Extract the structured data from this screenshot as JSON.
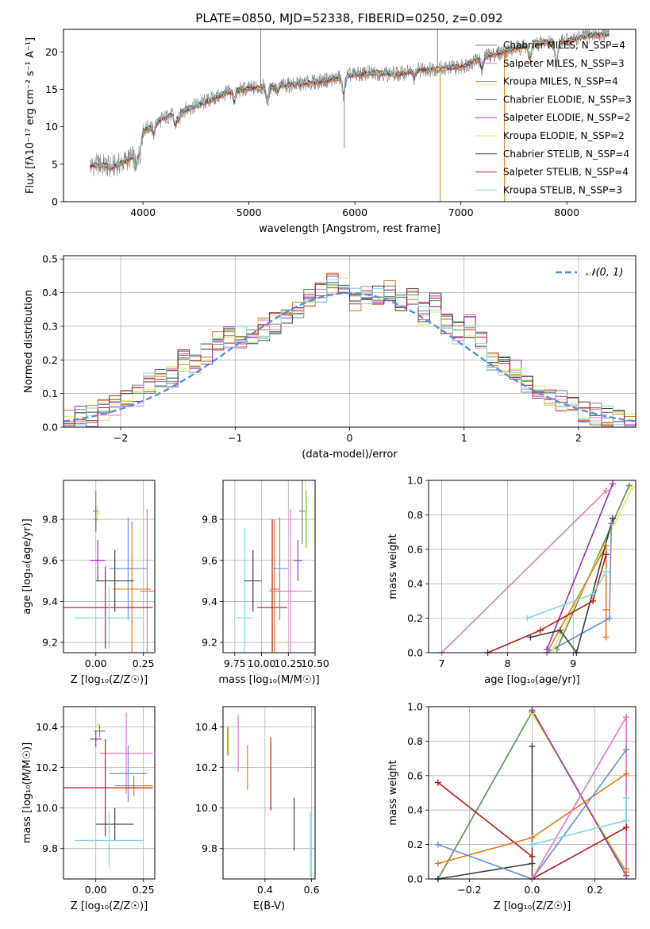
{
  "figure": {
    "title": "PLATE=0850, MJD=52338, FIBERID=0250, z=0.092"
  },
  "series_colors": {
    "Chabrier MILES": "#808080",
    "Salpeter MILES": "#e377c2",
    "Kroupa MILES": "#e07b1a",
    "Chabrier ELODIE": "#5a8f5a",
    "Salpeter ELODIE": "#9b30b0",
    "Kroupa ELODIE": "#e8e85a",
    "Chabrier STELIB": "#404040",
    "Salpeter STELIB": "#b01c1c",
    "Kroupa STELIB": "#7fd8d8",
    "extra_blue": "#6a8fd8",
    "extra_green": "#9ed65a",
    "gaussian": "#5b8fd6"
  },
  "chart_data": [
    {
      "type": "line",
      "id": "spectrum",
      "title": "PLATE=0850, MJD=52338, FIBERID=0250, z=0.092",
      "xlabel": "wavelength [Angstrom, rest frame]",
      "ylabel": "Flux [fλ10⁻¹⁷ erg cm⁻² s⁻¹ A⁻¹]",
      "xlim": [
        3250,
        8650
      ],
      "ylim": [
        0,
        23
      ],
      "xticks": [
        "4000",
        "5000",
        "6000",
        "7000",
        "8000"
      ],
      "xtick_values": [
        4000,
        5000,
        6000,
        7000,
        8000
      ],
      "yticks": [
        "0",
        "5",
        "10",
        "15",
        "20"
      ],
      "ytick_values": [
        0,
        5,
        10,
        15,
        20
      ],
      "grid": false,
      "legend_position": "right",
      "legend": [
        "Chabrier MILES, N_SSP=4",
        "Salpeter MILES, N_SSP=3",
        "Kroupa MILES, N_SSP=4",
        "Chabrier ELODIE, N_SSP=3",
        "Salpeter ELODIE, N_SSP=2",
        "Kroupa ELODIE, N_SSP=2",
        "Chabrier STELIB, N_SSP=4",
        "Salpeter STELIB, N_SSP=4",
        "Kroupa STELIB, N_SSP=3"
      ],
      "continuum": {
        "x": [
          3500,
          3600,
          3700,
          3800,
          3900,
          4000,
          4200,
          4400,
          4600,
          4800,
          5000,
          5200,
          5400,
          5600,
          5800,
          6000,
          6200,
          6400,
          6600,
          6800,
          7000,
          7200,
          7400,
          7600,
          7800,
          8000,
          8200,
          8400
        ],
        "y": [
          4.8,
          5.0,
          4.6,
          5.2,
          6.0,
          9.5,
          11.2,
          12.3,
          13.4,
          14.6,
          15.1,
          15.4,
          15.6,
          15.9,
          16.4,
          17.0,
          17.2,
          17.0,
          17.6,
          17.8,
          18.0,
          19.3,
          20.0,
          20.8,
          21.3,
          21.4,
          22.2,
          22.4
        ]
      },
      "absorption_features": [
        {
          "x": 3934,
          "depth": 2.5
        },
        {
          "x": 3969,
          "depth": 2.0
        },
        {
          "x": 4102,
          "depth": 1.2
        },
        {
          "x": 4305,
          "depth": 1.5
        },
        {
          "x": 4340,
          "depth": 1.0
        },
        {
          "x": 4861,
          "depth": 1.2
        },
        {
          "x": 5175,
          "depth": 2.0
        },
        {
          "x": 5270,
          "depth": 0.8
        },
        {
          "x": 5893,
          "depth": 2.3
        },
        {
          "x": 6563,
          "depth": 1.0
        },
        {
          "x": 7200,
          "depth": 1.5
        },
        {
          "x": 7650,
          "depth": 2.0
        },
        {
          "x": 7900,
          "depth": 2.8
        }
      ],
      "spikes": [
        {
          "x": 5110,
          "y": 23.0
        },
        {
          "x": 5900,
          "y": 7.2
        },
        {
          "x": 6780,
          "y": 23.0
        },
        {
          "x": 6805,
          "y": 0.0
        },
        {
          "x": 7410,
          "y": 0.0
        }
      ]
    },
    {
      "type": "line",
      "id": "residuals",
      "xlabel": "(data-model)/error",
      "ylabel": "Normed distribution",
      "xlim": [
        -2.5,
        2.5
      ],
      "ylim": [
        0,
        0.51
      ],
      "xticks": [
        "−2",
        "−1",
        "0",
        "1",
        "2"
      ],
      "xtick_values": [
        -2,
        -1,
        0,
        1,
        2
      ],
      "yticks": [
        "0.0",
        "0.1",
        "0.2",
        "0.3",
        "0.4",
        "0.5"
      ],
      "ytick_values": [
        0,
        0.1,
        0.2,
        0.3,
        0.4,
        0.5
      ],
      "grid": true,
      "legend_position": "top-right",
      "legend": [
        "𝒩(0, 1)"
      ],
      "bin_edges_start": -2.5,
      "bin_width": 0.1,
      "histogram": [
        0.02,
        0.03,
        0.03,
        0.05,
        0.06,
        0.08,
        0.09,
        0.13,
        0.14,
        0.15,
        0.2,
        0.19,
        0.22,
        0.25,
        0.27,
        0.27,
        0.26,
        0.29,
        0.31,
        0.33,
        0.34,
        0.38,
        0.4,
        0.43,
        0.41,
        0.38,
        0.4,
        0.39,
        0.41,
        0.38,
        0.38,
        0.34,
        0.37,
        0.31,
        0.28,
        0.3,
        0.25,
        0.2,
        0.18,
        0.17,
        0.13,
        0.11,
        0.1,
        0.08,
        0.07,
        0.05,
        0.04,
        0.03,
        0.02,
        0.02
      ],
      "gaussian": {
        "mu": 0,
        "sigma": 1,
        "style": "dashed"
      }
    },
    {
      "type": "scatter",
      "id": "age_vs_Z",
      "xlabel": "Z [log₁₀(Z/Z☉)]",
      "ylabel": "age  [log₁₀(age/yr)]",
      "xlim": [
        -0.17,
        0.31
      ],
      "ylim": [
        9.15,
        9.99
      ],
      "xticks": [
        "0.00",
        "0.25"
      ],
      "xtick_values": [
        0.0,
        0.25
      ],
      "yticks": [
        "9.2",
        "9.4",
        "9.6",
        "9.8"
      ],
      "ytick_values": [
        9.2,
        9.4,
        9.6,
        9.8
      ],
      "grid": true,
      "errorbars": [
        {
          "series": "Chabrier MILES",
          "x": 0.0,
          "xerr": 0.015,
          "y": 9.84,
          "yerr": 0.1
        },
        {
          "series": "Kroupa ELODIE",
          "x": 0.01,
          "xerr": 0.01,
          "y": 9.83,
          "yerr": 0.04
        },
        {
          "series": "Salpeter MILES",
          "x": 0.27,
          "xerr": 0.04,
          "y": 9.45,
          "yerr": 0.4
        },
        {
          "series": "extra_blue",
          "x": 0.17,
          "xerr": 0.1,
          "y": 9.56,
          "yerr": 0.25
        },
        {
          "series": "Kroupa MILES",
          "x": 0.19,
          "xerr": 0.1,
          "y": 9.46,
          "yerr": 0.33
        },
        {
          "series": "Salpeter ELODIE",
          "x": 0.01,
          "xerr": 0.04,
          "y": 9.6,
          "yerr": 0.1
        },
        {
          "series": "Chabrier STELIB",
          "x": 0.1,
          "xerr": 0.1,
          "y": 9.5,
          "yerr": 0.15
        },
        {
          "series": "Salpeter STELIB",
          "x": 0.05,
          "xerr": 0.25,
          "y": 9.37,
          "yerr": 0.2
        },
        {
          "series": "Kroupa STELIB",
          "x": 0.07,
          "xerr": 0.18,
          "y": 9.32,
          "yerr": 0.15
        },
        {
          "series": "Chabrier ELODIE",
          "x": 0.0,
          "xerr": 0.01,
          "y": 9.8,
          "yerr": 0.06
        }
      ]
    },
    {
      "type": "scatter",
      "id": "age_vs_mass",
      "xlabel": "mass [log₁₀(M/M☉)]",
      "ylabel": "",
      "xlim": [
        9.64,
        10.5
      ],
      "ylim": [
        9.15,
        9.99
      ],
      "xticks": [
        "9.75",
        "10.00",
        "10.25",
        "10.50"
      ],
      "xtick_values": [
        9.75,
        10.0,
        10.25,
        10.5
      ],
      "yticks": [
        "9.2",
        "9.4",
        "9.6",
        "9.8"
      ],
      "ytick_values": [
        9.2,
        9.4,
        9.6,
        9.8
      ],
      "grid": true,
      "errorbars": [
        {
          "series": "Kroupa STELIB",
          "x": 9.84,
          "xerr": 0.08,
          "y": 9.32,
          "yerr": 0.44
        },
        {
          "series": "Chabrier STELIB",
          "x": 9.92,
          "xerr": 0.08,
          "y": 9.5,
          "yerr": 0.15
        },
        {
          "series": "Salpeter STELIB",
          "x": 10.1,
          "xerr": 0.14,
          "y": 9.37,
          "yerr": 0.43
        },
        {
          "series": "Kroupa MILES",
          "x": 10.12,
          "xerr": 0.04,
          "y": 9.46,
          "yerr": 0.34
        },
        {
          "series": "extra_blue",
          "x": 10.17,
          "xerr": 0.08,
          "y": 9.56,
          "yerr": 0.25
        },
        {
          "series": "Salpeter MILES",
          "x": 10.27,
          "xerr": 0.2,
          "y": 9.45,
          "yerr": 0.4
        },
        {
          "series": "Salpeter ELODIE",
          "x": 10.34,
          "xerr": 0.04,
          "y": 9.6,
          "yerr": 0.1
        },
        {
          "series": "Chabrier MILES",
          "x": 10.38,
          "xerr": 0.03,
          "y": 9.84,
          "yerr": 0.16
        },
        {
          "series": "Kroupa ELODIE",
          "x": 10.41,
          "xerr": 0.01,
          "y": 9.83,
          "yerr": 0.17
        },
        {
          "series": "extra_green",
          "x": 10.42,
          "xerr": 0.01,
          "y": 9.8,
          "yerr": 0.14
        }
      ]
    },
    {
      "type": "line",
      "id": "weight_vs_age",
      "xlabel": "age  [log₁₀(age/yr)]",
      "ylabel": "mass weight",
      "xlim": [
        6.8,
        9.95
      ],
      "ylim": [
        0,
        1.0
      ],
      "xticks": [
        "7",
        "8",
        "9"
      ],
      "xtick_values": [
        7,
        8,
        9
      ],
      "yticks": [
        "0.0",
        "0.2",
        "0.4",
        "0.6",
        "0.8",
        "1.0"
      ],
      "ytick_values": [
        0,
        0.2,
        0.4,
        0.6,
        0.8,
        1.0
      ],
      "grid": true,
      "series": [
        {
          "name": "Salpeter MILES",
          "x": [
            7.0,
            9.5
          ],
          "y": [
            0.0,
            0.94
          ]
        },
        {
          "name": "Salpeter ELODIE",
          "x": [
            8.6,
            9.6
          ],
          "y": [
            0.02,
            0.98
          ]
        },
        {
          "name": "Chabrier ELODIE",
          "x": [
            8.75,
            9.85
          ],
          "y": [
            0.02,
            0.97
          ]
        },
        {
          "name": "Kroupa ELODIE",
          "x": [
            8.7,
            9.9
          ],
          "y": [
            0.02,
            0.96
          ]
        },
        {
          "name": "Kroupa MILES",
          "x": [
            8.6,
            9.5,
            9.5,
            9.5
          ],
          "y": [
            0.0,
            0.62,
            0.25,
            0.09
          ]
        },
        {
          "name": "extra_blue",
          "x": [
            8.6,
            9.55,
            9.58
          ],
          "y": [
            0.0,
            0.2,
            0.75
          ]
        },
        {
          "name": "Chabrier STELIB",
          "x": [
            8.35,
            8.8,
            9.05,
            9.6
          ],
          "y": [
            0.09,
            0.13,
            0.0,
            0.78
          ]
        },
        {
          "name": "Salpeter STELIB",
          "x": [
            7.7,
            8.5,
            9.3,
            9.5
          ],
          "y": [
            0.0,
            0.13,
            0.3,
            0.57
          ]
        },
        {
          "name": "Kroupa STELIB",
          "x": [
            8.3,
            9.3,
            9.5
          ],
          "y": [
            0.2,
            0.34,
            0.47
          ]
        }
      ]
    },
    {
      "type": "scatter",
      "id": "mass_vs_Z",
      "xlabel": "Z [log₁₀(Z/Z☉)]",
      "ylabel": "mass [log₁₀(M/M☉)]",
      "xlim": [
        -0.17,
        0.31
      ],
      "ylim": [
        9.65,
        10.5
      ],
      "xticks": [
        "0.00",
        "0.25"
      ],
      "xtick_values": [
        0.0,
        0.25
      ],
      "yticks": [
        "9.8",
        "10.0",
        "10.2",
        "10.4"
      ],
      "ytick_values": [
        9.8,
        10.0,
        10.2,
        10.4
      ],
      "grid": true,
      "errorbars": [
        {
          "series": "Chabrier MILES",
          "x": 0.02,
          "xerr": 0.03,
          "y": 10.38,
          "yerr": 0.03
        },
        {
          "series": "Kroupa ELODIE",
          "x": 0.01,
          "xerr": 0.01,
          "y": 10.41,
          "yerr": 0.02
        },
        {
          "series": "Salpeter ELODIE",
          "x": 0.0,
          "xerr": 0.03,
          "y": 10.34,
          "yerr": 0.04
        },
        {
          "series": "Salpeter MILES",
          "x": 0.16,
          "xerr": 0.14,
          "y": 10.27,
          "yerr": 0.2
        },
        {
          "series": "extra_blue",
          "x": 0.17,
          "xerr": 0.1,
          "y": 10.17,
          "yerr": 0.14
        },
        {
          "series": "Kroupa MILES",
          "x": 0.2,
          "xerr": 0.1,
          "y": 10.11,
          "yerr": 0.05
        },
        {
          "series": "Salpeter STELIB",
          "x": 0.05,
          "xerr": 0.25,
          "y": 10.1,
          "yerr": 0.24
        },
        {
          "series": "Chabrier STELIB",
          "x": 0.1,
          "xerr": 0.1,
          "y": 9.92,
          "yerr": 0.08
        },
        {
          "series": "Kroupa STELIB",
          "x": 0.07,
          "xerr": 0.18,
          "y": 9.84,
          "yerr": 0.14
        }
      ]
    },
    {
      "type": "scatter",
      "id": "mass_vs_EBV",
      "xlabel": "E(B-V)",
      "ylabel": "",
      "xlim": [
        0.22,
        0.615
      ],
      "ylim": [
        9.65,
        10.5
      ],
      "xticks": [
        "0.4",
        "0.6"
      ],
      "xtick_values": [
        0.4,
        0.6
      ],
      "yticks": [
        "9.8",
        "10.0",
        "10.2",
        "10.4"
      ],
      "ytick_values": [
        9.8,
        10.0,
        10.2,
        10.4
      ],
      "grid": true,
      "errorbars": [
        {
          "series": "Chabrier ELODIE",
          "x": 0.24,
          "xerr": 0,
          "y": 10.33,
          "yerr": 0.07
        },
        {
          "series": "Kroupa ELODIE",
          "x": 0.245,
          "xerr": 0,
          "y": 10.33,
          "yerr": 0.08
        },
        {
          "series": "Salpeter MILES",
          "x": 0.285,
          "xerr": 0,
          "y": 10.32,
          "yerr": 0.14
        },
        {
          "series": "Kroupa MILES",
          "x": 0.325,
          "xerr": 0,
          "y": 10.2,
          "yerr": 0.11
        },
        {
          "series": "Salpeter STELIB",
          "x": 0.425,
          "xerr": 0,
          "y": 10.17,
          "yerr": 0.18
        },
        {
          "series": "Chabrier STELIB",
          "x": 0.525,
          "xerr": 0,
          "y": 9.92,
          "yerr": 0.13
        },
        {
          "series": "Kroupa STELIB",
          "x": 0.595,
          "xerr": 0,
          "y": 9.82,
          "yerr": 0.16
        }
      ]
    },
    {
      "type": "line",
      "id": "weight_vs_Z",
      "xlabel": "Z [log₁₀(Z/Z☉)]",
      "ylabel": "mass weight",
      "xlim": [
        -0.33,
        0.33
      ],
      "ylim": [
        0,
        1.0
      ],
      "xticks": [
        "−0.2",
        "0.0",
        "0.2"
      ],
      "xtick_values": [
        -0.2,
        0.0,
        0.2
      ],
      "yticks": [
        "0.0",
        "0.2",
        "0.4",
        "0.6",
        "0.8",
        "1.0"
      ],
      "ytick_values": [
        0,
        0.2,
        0.4,
        0.6,
        0.8,
        1.0
      ],
      "grid": true,
      "series": [
        {
          "name": "Chabrier ELODIE",
          "x": [
            -0.3,
            0.0,
            0.3
          ],
          "y": [
            0.0,
            0.97,
            0.04
          ]
        },
        {
          "name": "Kroupa ELODIE",
          "x": [
            0.0,
            0.3
          ],
          "y": [
            0.96,
            0.05
          ]
        },
        {
          "name": "Salpeter ELODIE",
          "x": [
            0.0,
            0.3
          ],
          "y": [
            0.98,
            0.02
          ]
        },
        {
          "name": "Chabrier STELIB",
          "x": [
            -0.3,
            0.0,
            0.0
          ],
          "y": [
            0.0,
            0.09,
            0.77
          ]
        },
        {
          "name": "Salpeter STELIB",
          "x": [
            -0.3,
            0.0,
            0.0,
            0.3
          ],
          "y": [
            0.56,
            0.13,
            0.0,
            0.3
          ]
        },
        {
          "name": "Kroupa MILES",
          "x": [
            -0.3,
            0.0,
            0.3,
            0.3
          ],
          "y": [
            0.09,
            0.24,
            0.61,
            0.04
          ]
        },
        {
          "name": "extra_blue",
          "x": [
            -0.3,
            0.0,
            0.3
          ],
          "y": [
            0.2,
            0.0,
            0.75
          ]
        },
        {
          "name": "Salpeter MILES",
          "x": [
            0.0,
            0.3,
            0.3
          ],
          "y": [
            0.0,
            0.94,
            0.06
          ]
        },
        {
          "name": "Kroupa STELIB",
          "x": [
            0.0,
            0.3,
            0.3
          ],
          "y": [
            0.2,
            0.34,
            0.47
          ]
        }
      ]
    }
  ]
}
